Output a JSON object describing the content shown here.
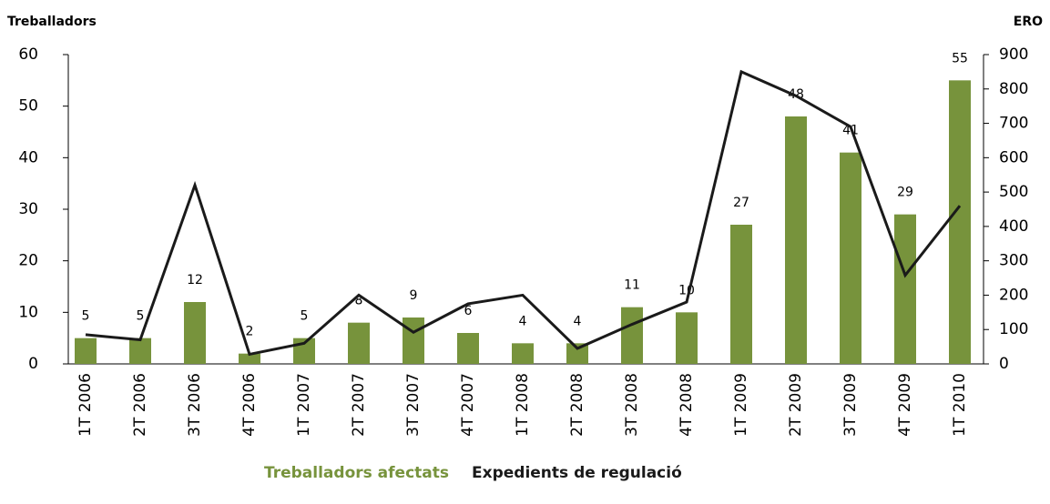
{
  "chart_data": {
    "type": "bar_line",
    "y_label": "Treballadors",
    "y2_label": "ERO",
    "categories": [
      "1T 2006",
      "2T 2006",
      "3T 2006",
      "4T 2006",
      "1T 2007",
      "2T 2007",
      "3T 2007",
      "4T 2007",
      "1T 2008",
      "2T 2008",
      "3T 2008",
      "4T 2008",
      "1T 2009",
      "2T 2009",
      "3T 2009",
      "4T 2009",
      "1T 2010"
    ],
    "series": [
      {
        "name": "Treballadors afectats",
        "color": "#77933c",
        "kind": "bar",
        "values": [
          5,
          5,
          12,
          2,
          5,
          8,
          9,
          6,
          4,
          4,
          11,
          10,
          27,
          48,
          41,
          29,
          55
        ]
      },
      {
        "name": "Expedients de regulació",
        "color": "#1a1a1a",
        "kind": "line",
        "axis": "y2",
        "values": [
          85,
          70,
          520,
          28,
          60,
          200,
          92,
          175,
          200,
          45,
          115,
          180,
          850,
          780,
          690,
          258,
          460
        ]
      }
    ],
    "ylim": [
      0,
      60
    ],
    "yticks": [
      0,
      10,
      20,
      30,
      40,
      50,
      60
    ],
    "y2lim": [
      0,
      900
    ],
    "y2ticks": [
      0,
      100,
      200,
      300,
      400,
      500,
      600,
      700,
      800,
      900
    ],
    "data_labels": true
  }
}
